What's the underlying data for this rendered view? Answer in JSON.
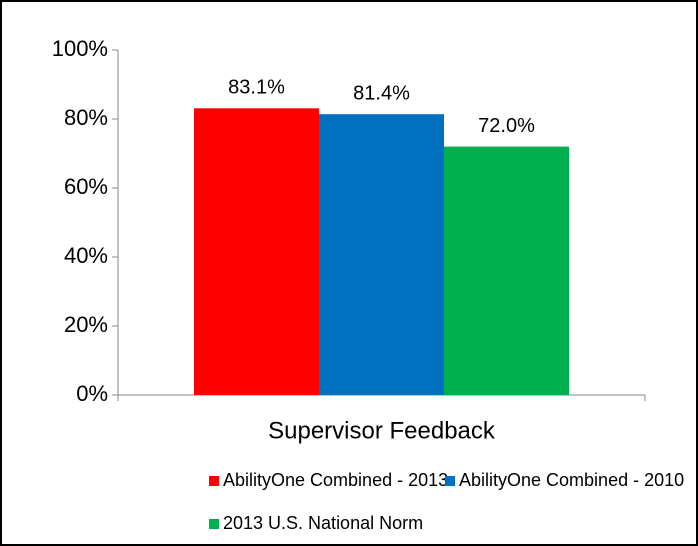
{
  "chart_data": {
    "type": "bar",
    "categories": [
      "Supervisor Feedback"
    ],
    "series": [
      {
        "name": "AbilityOne Combined - 2013",
        "color": "#ff0000",
        "values": [
          83.1
        ],
        "value_labels": [
          "83.1%"
        ]
      },
      {
        "name": "AbilityOne Combined - 2010",
        "color": "#0070c0",
        "values": [
          81.4
        ],
        "value_labels": [
          "81.4%"
        ]
      },
      {
        "name": "2013 U.S. National Norm",
        "color": "#00b050",
        "values": [
          72.0
        ],
        "value_labels": [
          "72.0%"
        ]
      }
    ],
    "ylim": [
      0,
      100
    ],
    "yticks": [
      {
        "value": 0,
        "label": "0%"
      },
      {
        "value": 20,
        "label": "20%"
      },
      {
        "value": 40,
        "label": "40%"
      },
      {
        "value": 60,
        "label": "60%"
      },
      {
        "value": 80,
        "label": "80%"
      },
      {
        "value": 100,
        "label": "100%"
      }
    ],
    "grid": false,
    "legend": "bottom"
  }
}
